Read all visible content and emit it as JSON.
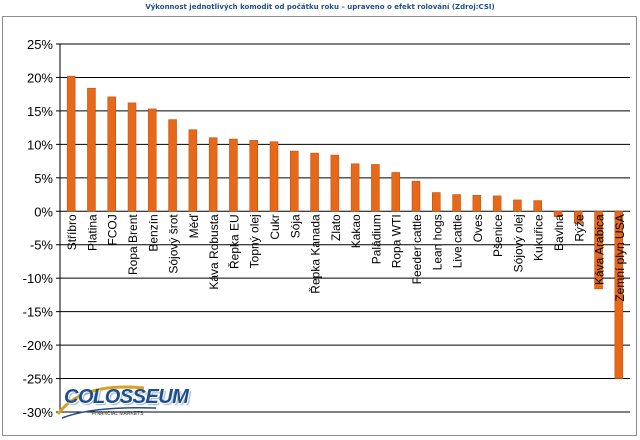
{
  "chart_data": {
    "type": "bar",
    "title": "Výkonnost jednotlivých komodit od počátku roku – upraveno o efekt rolování (Zdroj:CSI)",
    "categories": [
      "Stříbro",
      "Platina",
      "FCOJ",
      "Ropa Brent",
      "Benzín",
      "Sójový šrot",
      "Měď",
      "Káva Robusta",
      "Řepka EU",
      "Topný olej",
      "Cukr",
      "Sója",
      "Řepka Kanada",
      "Zlato",
      "Kakao",
      "Paládium",
      "Ropa WTI",
      "Feeder cattle",
      "Lean hogs",
      "Live cattle",
      "Oves",
      "Pšenice",
      "Sójový olej",
      "Kukuřice",
      "Bavlna",
      "Rýže",
      "Káva Arabica",
      "Zemní plyn USA"
    ],
    "values": [
      20.2,
      18.4,
      17.1,
      16.2,
      15.3,
      13.7,
      12.2,
      11.0,
      10.8,
      10.6,
      10.4,
      9.0,
      8.7,
      8.4,
      7.1,
      7.0,
      5.8,
      4.5,
      2.8,
      2.5,
      2.4,
      2.3,
      1.7,
      1.6,
      -0.8,
      -1.8,
      -11.6,
      -25.0
    ],
    "yticks": [
      "25%",
      "20%",
      "15%",
      "10%",
      "5%",
      "0%",
      "-5%",
      "-10%",
      "-15%",
      "-20%",
      "-25%",
      "-30%"
    ],
    "ylim": [
      -30,
      25
    ],
    "grid": true,
    "bar_color": "#e8681a"
  },
  "logo": {
    "name": "COLOSSEUM",
    "tagline": "FINANCIAL MARKETS"
  }
}
